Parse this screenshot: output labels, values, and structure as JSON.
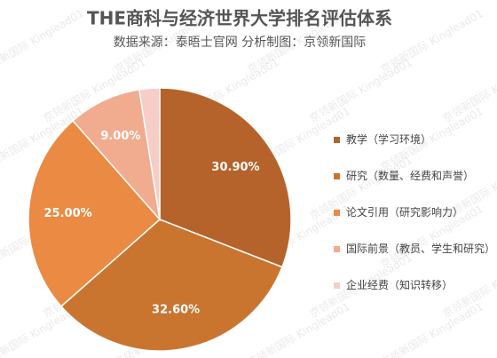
{
  "chart_data": {
    "type": "pie",
    "title": "THE商科与经济世界大学排名评估体系",
    "subtitle": "数据来源：泰晤士官网  分析制图：京领新国际",
    "watermark": "京领新国际 Kinglead01",
    "categories": [
      "教学（学习环境）",
      "研究（数量、经费和声誉）",
      "论文引用（研究影响力）",
      "国际前景（教员、学生和研究）",
      "企业经费（知识转移）"
    ],
    "values": [
      30.9,
      32.6,
      25.0,
      9.0,
      2.5
    ],
    "value_labels": [
      "30.90%",
      "32.60%",
      "25.00%",
      "9.00%",
      null
    ],
    "colors": [
      "#b5632a",
      "#c97530",
      "#ea8a43",
      "#f1ab8e",
      "#f7cdc7"
    ],
    "legend": "right"
  }
}
